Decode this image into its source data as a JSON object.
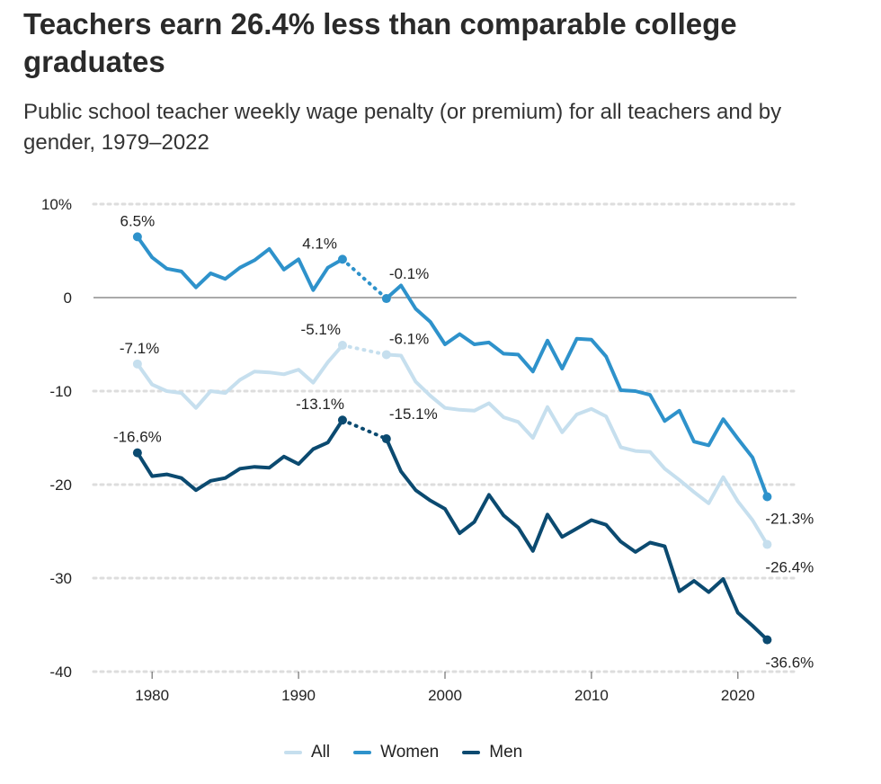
{
  "title": "Teachers earn 26.4% less than comparable college graduates",
  "subtitle": "Public school teacher weekly wage penalty (or premium) for all teachers and by gender, 1979–2022",
  "colors": {
    "all": "#c6dfee",
    "women": "#2e92cb",
    "men": "#0b4a70",
    "grid": "#dddddd",
    "zero": "#777777"
  },
  "chart_data": {
    "type": "line",
    "xlim": [
      1976,
      2024
    ],
    "ylim": [
      -40,
      10
    ],
    "y_ticks": [
      10,
      0,
      -10,
      -20,
      -30,
      -40
    ],
    "y_tick_labels": [
      "10%",
      "0",
      "-10",
      "-20",
      "-30",
      "-40"
    ],
    "x_ticks": [
      1980,
      1990,
      2000,
      2010,
      2020
    ],
    "x_tick_labels": [
      "1980",
      "1990",
      "2000",
      "2010",
      "2020"
    ],
    "grid": true,
    "legend_position": "bottom",
    "gap_years": [
      1994,
      1995
    ],
    "series": [
      {
        "name": "All",
        "color_key": "all",
        "x": [
          1979,
          1980,
          1981,
          1982,
          1983,
          1984,
          1985,
          1986,
          1987,
          1988,
          1989,
          1990,
          1991,
          1992,
          1993,
          1996,
          1997,
          1998,
          1999,
          2000,
          2001,
          2002,
          2003,
          2004,
          2005,
          2006,
          2007,
          2008,
          2009,
          2010,
          2011,
          2012,
          2013,
          2014,
          2015,
          2016,
          2017,
          2018,
          2019,
          2020,
          2021,
          2022
        ],
        "y": [
          -7.1,
          -9.3,
          -10.0,
          -10.2,
          -11.8,
          -10.0,
          -10.2,
          -8.8,
          -7.9,
          -8.0,
          -8.2,
          -7.7,
          -9.1,
          -6.9,
          -5.1,
          -6.1,
          -6.2,
          -9.0,
          -10.5,
          -11.8,
          -12.0,
          -12.1,
          -11.3,
          -12.8,
          -13.3,
          -15.0,
          -11.7,
          -14.4,
          -12.5,
          -11.9,
          -12.7,
          -16.0,
          -16.4,
          -16.5,
          -18.3,
          -19.5,
          -20.8,
          -22.0,
          -19.2,
          -21.8,
          -23.8,
          -26.4
        ]
      },
      {
        "name": "Women",
        "color_key": "women",
        "x": [
          1979,
          1980,
          1981,
          1982,
          1983,
          1984,
          1985,
          1986,
          1987,
          1988,
          1989,
          1990,
          1991,
          1992,
          1993,
          1996,
          1997,
          1998,
          1999,
          2000,
          2001,
          2002,
          2003,
          2004,
          2005,
          2006,
          2007,
          2008,
          2009,
          2010,
          2011,
          2012,
          2013,
          2014,
          2015,
          2016,
          2017,
          2018,
          2019,
          2020,
          2021,
          2022
        ],
        "y": [
          6.5,
          4.3,
          3.1,
          2.8,
          1.1,
          2.6,
          2.0,
          3.2,
          4.0,
          5.2,
          3.0,
          4.1,
          0.8,
          3.2,
          4.1,
          -0.1,
          1.3,
          -1.2,
          -2.6,
          -5.0,
          -3.9,
          -5.0,
          -4.8,
          -6.0,
          -6.1,
          -7.9,
          -4.6,
          -7.6,
          -4.4,
          -4.5,
          -6.3,
          -9.9,
          -10.0,
          -10.4,
          -13.2,
          -12.1,
          -15.4,
          -15.8,
          -13.0,
          -15.1,
          -17.1,
          -21.3
        ]
      },
      {
        "name": "Men",
        "color_key": "men",
        "x": [
          1979,
          1980,
          1981,
          1982,
          1983,
          1984,
          1985,
          1986,
          1987,
          1988,
          1989,
          1990,
          1991,
          1992,
          1993,
          1996,
          1997,
          1998,
          1999,
          2000,
          2001,
          2002,
          2003,
          2004,
          2005,
          2006,
          2007,
          2008,
          2009,
          2010,
          2011,
          2012,
          2013,
          2014,
          2015,
          2016,
          2017,
          2018,
          2019,
          2020,
          2021,
          2022
        ],
        "y": [
          -16.6,
          -19.1,
          -18.9,
          -19.3,
          -20.6,
          -19.6,
          -19.3,
          -18.3,
          -18.1,
          -18.2,
          -17.0,
          -17.8,
          -16.2,
          -15.5,
          -13.1,
          -15.1,
          -18.6,
          -20.6,
          -21.7,
          -22.6,
          -25.2,
          -24.0,
          -21.1,
          -23.3,
          -24.6,
          -27.1,
          -23.2,
          -25.6,
          -24.7,
          -23.8,
          -24.3,
          -26.1,
          -27.2,
          -26.2,
          -26.6,
          -31.4,
          -30.3,
          -31.5,
          -30.1,
          -33.7,
          -35.1,
          -36.6
        ]
      }
    ],
    "data_labels": [
      {
        "series": "Women",
        "x": 1979,
        "y": 6.5,
        "text": "6.5%",
        "anchor": "middle",
        "dx": 0,
        "dy": -12
      },
      {
        "series": "Women",
        "x": 1993,
        "y": 4.1,
        "text": "4.1%",
        "anchor": "end",
        "dx": -6,
        "dy": -12
      },
      {
        "series": "Women",
        "x": 1996,
        "y": -0.1,
        "text": "-0.1%",
        "anchor": "start",
        "dx": 3,
        "dy": -22
      },
      {
        "series": "All",
        "x": 1979,
        "y": -7.1,
        "text": "-7.1%",
        "anchor": "start",
        "dx": -20,
        "dy": -12
      },
      {
        "series": "All",
        "x": 1993,
        "y": -5.1,
        "text": "-5.1%",
        "anchor": "end",
        "dx": -2,
        "dy": -12
      },
      {
        "series": "All",
        "x": 1996,
        "y": -6.1,
        "text": "-6.1%",
        "anchor": "start",
        "dx": 3,
        "dy": -12
      },
      {
        "series": "Men",
        "x": 1979,
        "y": -16.6,
        "text": "-16.6%",
        "anchor": "middle",
        "dx": 0,
        "dy": -12
      },
      {
        "series": "Men",
        "x": 1993,
        "y": -13.1,
        "text": "-13.1%",
        "anchor": "end",
        "dx": 2,
        "dy": -12
      },
      {
        "series": "Men",
        "x": 1996,
        "y": -15.1,
        "text": "-15.1%",
        "anchor": "start",
        "dx": 3,
        "dy": -22
      },
      {
        "series": "Women",
        "x": 2022,
        "y": -21.3,
        "text": "-21.3%",
        "anchor": "start",
        "dx": -2,
        "dy": 30
      },
      {
        "series": "All",
        "x": 2022,
        "y": -26.4,
        "text": "-26.4%",
        "anchor": "start",
        "dx": -2,
        "dy": 31
      },
      {
        "series": "Men",
        "x": 2022,
        "y": -36.6,
        "text": "-36.6%",
        "anchor": "start",
        "dx": -2,
        "dy": 31
      }
    ]
  },
  "legend": [
    {
      "label": "All",
      "color_key": "all"
    },
    {
      "label": "Women",
      "color_key": "women"
    },
    {
      "label": "Men",
      "color_key": "men"
    }
  ]
}
